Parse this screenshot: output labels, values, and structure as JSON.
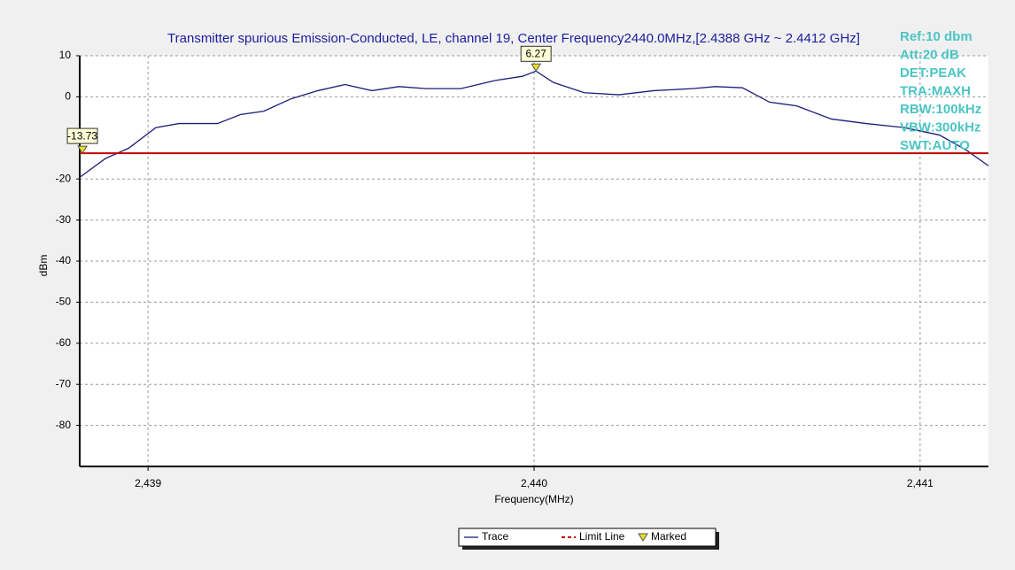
{
  "chart_data": {
    "type": "line",
    "title": "Transmitter spurious Emission-Conducted, LE, channel 19, Center Frequency2440.0MHz,[2.4388 GHz ~ 2.4412 GHz]",
    "x_label": "Frequency(MHz)",
    "y_label": "dBm",
    "x": [
      2438.823,
      2438.89,
      2438.95,
      2439.02,
      2439.08,
      2439.18,
      2439.24,
      2439.3,
      2439.37,
      2439.44,
      2439.51,
      2439.58,
      2439.65,
      2439.72,
      2439.81,
      2439.9,
      2439.97,
      2440.005,
      2440.05,
      2440.13,
      2440.22,
      2440.31,
      2440.41,
      2440.47,
      2440.54,
      2440.61,
      2440.68,
      2440.77,
      2440.86,
      2440.96,
      2441.05,
      2441.12,
      2441.177
    ],
    "series": [
      {
        "name": "Trace",
        "color": "#1c1c78",
        "values": [
          -19.6,
          -15,
          -12.5,
          -7.5,
          -6.5,
          -6.5,
          -4.3,
          -3.5,
          -0.5,
          1.5,
          3,
          1.5,
          2.5,
          2,
          2,
          4,
          5,
          6.27,
          3.5,
          1,
          0.5,
          1.5,
          2,
          2.5,
          2.2,
          -1.3,
          -2.2,
          -5.4,
          -6.5,
          -7.5,
          -9.3,
          -13,
          -16.8
        ]
      }
    ],
    "limit_line": {
      "name": "Limit Line",
      "value": -13.73,
      "color": "#c00000"
    },
    "markers": {
      "name": "Marked",
      "x": [
        2438.83,
        2440.005
      ],
      "values": [
        -13.73,
        6.27
      ],
      "color": "#e8e020"
    },
    "xlim": [
      2438.823,
      2441.177
    ],
    "xticks": [
      {
        "value": 2439,
        "label": "2,439"
      },
      {
        "value": 2440,
        "label": "2,440"
      },
      {
        "value": 2441,
        "label": "2,441"
      }
    ],
    "ylim": [
      -90,
      10
    ],
    "yticks": [
      10,
      0,
      -20,
      -30,
      -40,
      -50,
      -60,
      -70,
      -80
    ],
    "grid": true,
    "annotations": [
      "Ref:10 dbm",
      "Att:20 dB",
      "DET:PEAK",
      "TRA:MAXH",
      "RBW:100kHz",
      "VBW:300kHz",
      "SWT:AUTO"
    ]
  }
}
